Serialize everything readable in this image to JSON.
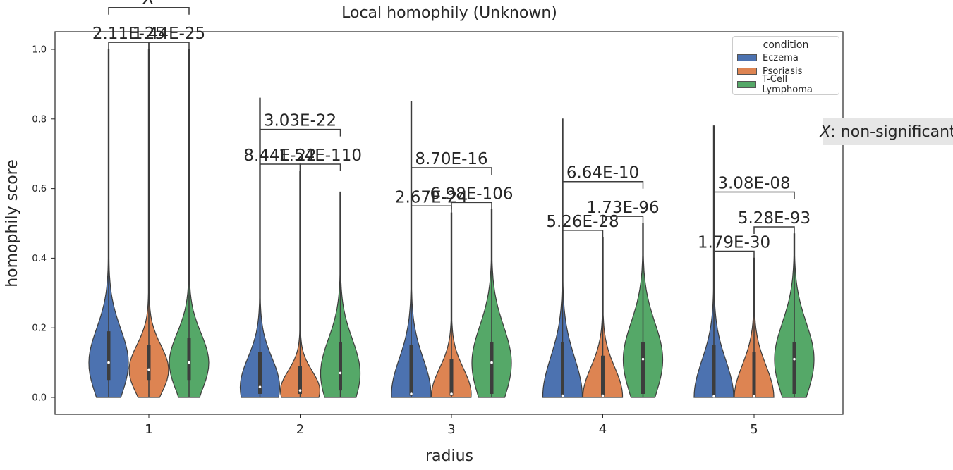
{
  "chart_data": {
    "type": "violin",
    "title": "Local homophily (Unknown)",
    "xlabel": "radius",
    "ylabel": "homophily score",
    "categories": [
      "1",
      "2",
      "3",
      "4",
      "5"
    ],
    "ylim": [
      -0.05,
      1.05
    ],
    "yticks": [
      "0.0",
      "0.2",
      "0.4",
      "0.6",
      "0.8",
      "1.0"
    ],
    "grid": false,
    "legend": {
      "title": "condition",
      "placement": "top-right",
      "entries": [
        "Eczema",
        "Psoriasis",
        "T-Cell Lymphoma"
      ]
    },
    "colors": {
      "Eczema": "#4c72b0",
      "Psoriasis": "#dd8452",
      "T-Cell Lymphoma": "#55a868"
    },
    "series": [
      {
        "name": "Eczema",
        "max": [
          1.0,
          0.86,
          0.85,
          0.8,
          0.78
        ],
        "q1": [
          0.05,
          0.01,
          0.005,
          0.003,
          0.002
        ],
        "median": [
          0.1,
          0.03,
          0.01,
          0.005,
          0.003
        ],
        "q3": [
          0.19,
          0.13,
          0.15,
          0.16,
          0.15
        ]
      },
      {
        "name": "Psoriasis",
        "max": [
          1.0,
          0.65,
          0.53,
          0.46,
          0.4
        ],
        "q1": [
          0.05,
          0.01,
          0.005,
          0.003,
          0.002
        ],
        "median": [
          0.08,
          0.02,
          0.01,
          0.005,
          0.003
        ],
        "q3": [
          0.15,
          0.09,
          0.11,
          0.12,
          0.13
        ]
      },
      {
        "name": "T-Cell Lymphoma",
        "max": [
          1.0,
          0.59,
          0.54,
          0.5,
          0.47
        ],
        "q1": [
          0.05,
          0.02,
          0.01,
          0.01,
          0.01
        ],
        "median": [
          0.1,
          0.07,
          0.1,
          0.11,
          0.11
        ],
        "q3": [
          0.17,
          0.16,
          0.16,
          0.16,
          0.16
        ]
      }
    ],
    "annotations": [
      {
        "radius": "1",
        "pair": [
          "Eczema",
          "Psoriasis"
        ],
        "label": "2.11E-25"
      },
      {
        "radius": "1",
        "pair": [
          "Psoriasis",
          "T-Cell Lymphoma"
        ],
        "label": "1.44E-25"
      },
      {
        "radius": "1",
        "pair": [
          "Eczema",
          "T-Cell Lymphoma"
        ],
        "label": "X"
      },
      {
        "radius": "2",
        "pair": [
          "Eczema",
          "Psoriasis"
        ],
        "label": "8.44E-22"
      },
      {
        "radius": "2",
        "pair": [
          "Psoriasis",
          "T-Cell Lymphoma"
        ],
        "label": "1.54E-110"
      },
      {
        "radius": "2",
        "pair": [
          "Eczema",
          "T-Cell Lymphoma"
        ],
        "label": "3.03E-22"
      },
      {
        "radius": "3",
        "pair": [
          "Eczema",
          "Psoriasis"
        ],
        "label": "2.67E-24"
      },
      {
        "radius": "3",
        "pair": [
          "Psoriasis",
          "T-Cell Lymphoma"
        ],
        "label": "6.98E-106"
      },
      {
        "radius": "3",
        "pair": [
          "Eczema",
          "T-Cell Lymphoma"
        ],
        "label": "8.70E-16"
      },
      {
        "radius": "4",
        "pair": [
          "Eczema",
          "Psoriasis"
        ],
        "label": "5.26E-28"
      },
      {
        "radius": "4",
        "pair": [
          "Psoriasis",
          "T-Cell Lymphoma"
        ],
        "label": "1.73E-96"
      },
      {
        "radius": "4",
        "pair": [
          "Eczema",
          "T-Cell Lymphoma"
        ],
        "label": "6.64E-10"
      },
      {
        "radius": "5",
        "pair": [
          "Eczema",
          "Psoriasis"
        ],
        "label": "1.79E-30"
      },
      {
        "radius": "5",
        "pair": [
          "Psoriasis",
          "T-Cell Lymphoma"
        ],
        "label": "5.28E-93"
      },
      {
        "radius": "5",
        "pair": [
          "Eczema",
          "T-Cell Lymphoma"
        ],
        "label": "3.08E-08"
      }
    ],
    "note": {
      "symbol": "X",
      "text": ": non-significant"
    }
  }
}
